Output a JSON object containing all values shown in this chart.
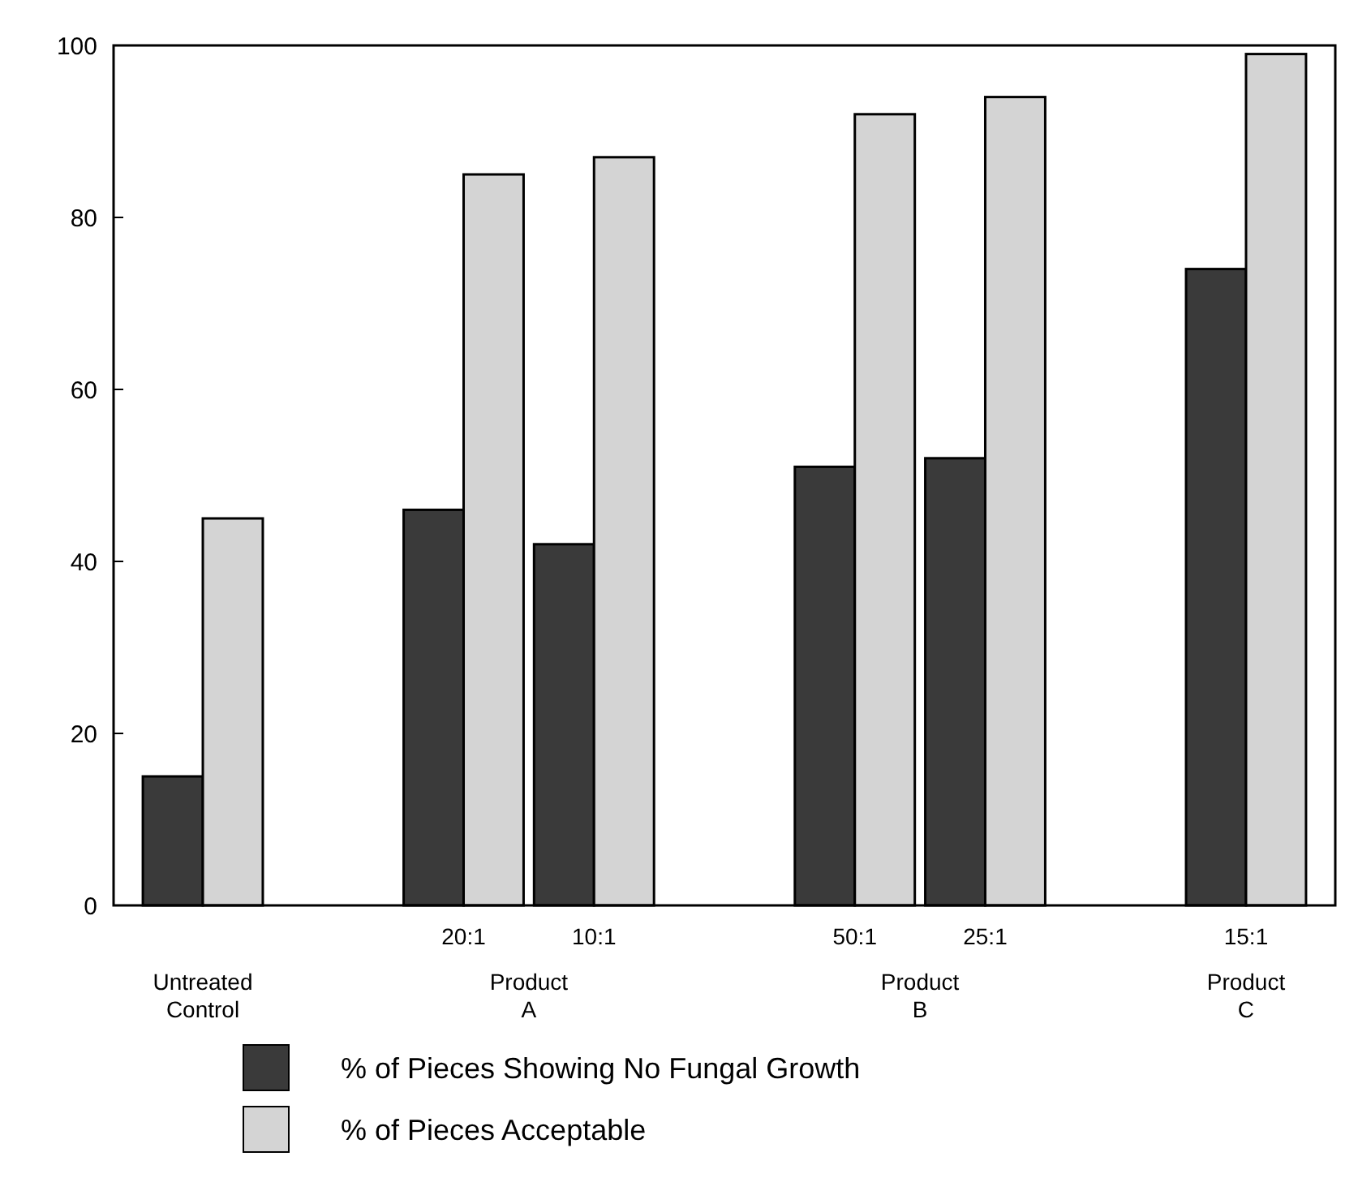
{
  "chart_data": {
    "type": "bar",
    "categories": [
      null,
      null,
      "20:1",
      "10:1",
      null,
      "50:1",
      "25:1",
      null,
      "15:1"
    ],
    "series": [
      {
        "name": "% of Pieces Showing No Fungal Growth",
        "color": "#3a3a3a",
        "values": [
          15,
          null,
          46,
          42,
          null,
          51,
          52,
          null,
          74
        ]
      },
      {
        "name": "% of Pieces Acceptable",
        "color": "#d4d4d4",
        "values": [
          45,
          null,
          85,
          87,
          null,
          92,
          94,
          null,
          99
        ]
      }
    ],
    "ylim": [
      0,
      100
    ],
    "yticks": [
      0,
      20,
      40,
      60,
      80,
      100
    ],
    "annotations": [
      "Untreated\nControl",
      "Product\nA",
      "Product\nB",
      "Product\nC"
    ],
    "legend": "bottom",
    "grid": false
  }
}
